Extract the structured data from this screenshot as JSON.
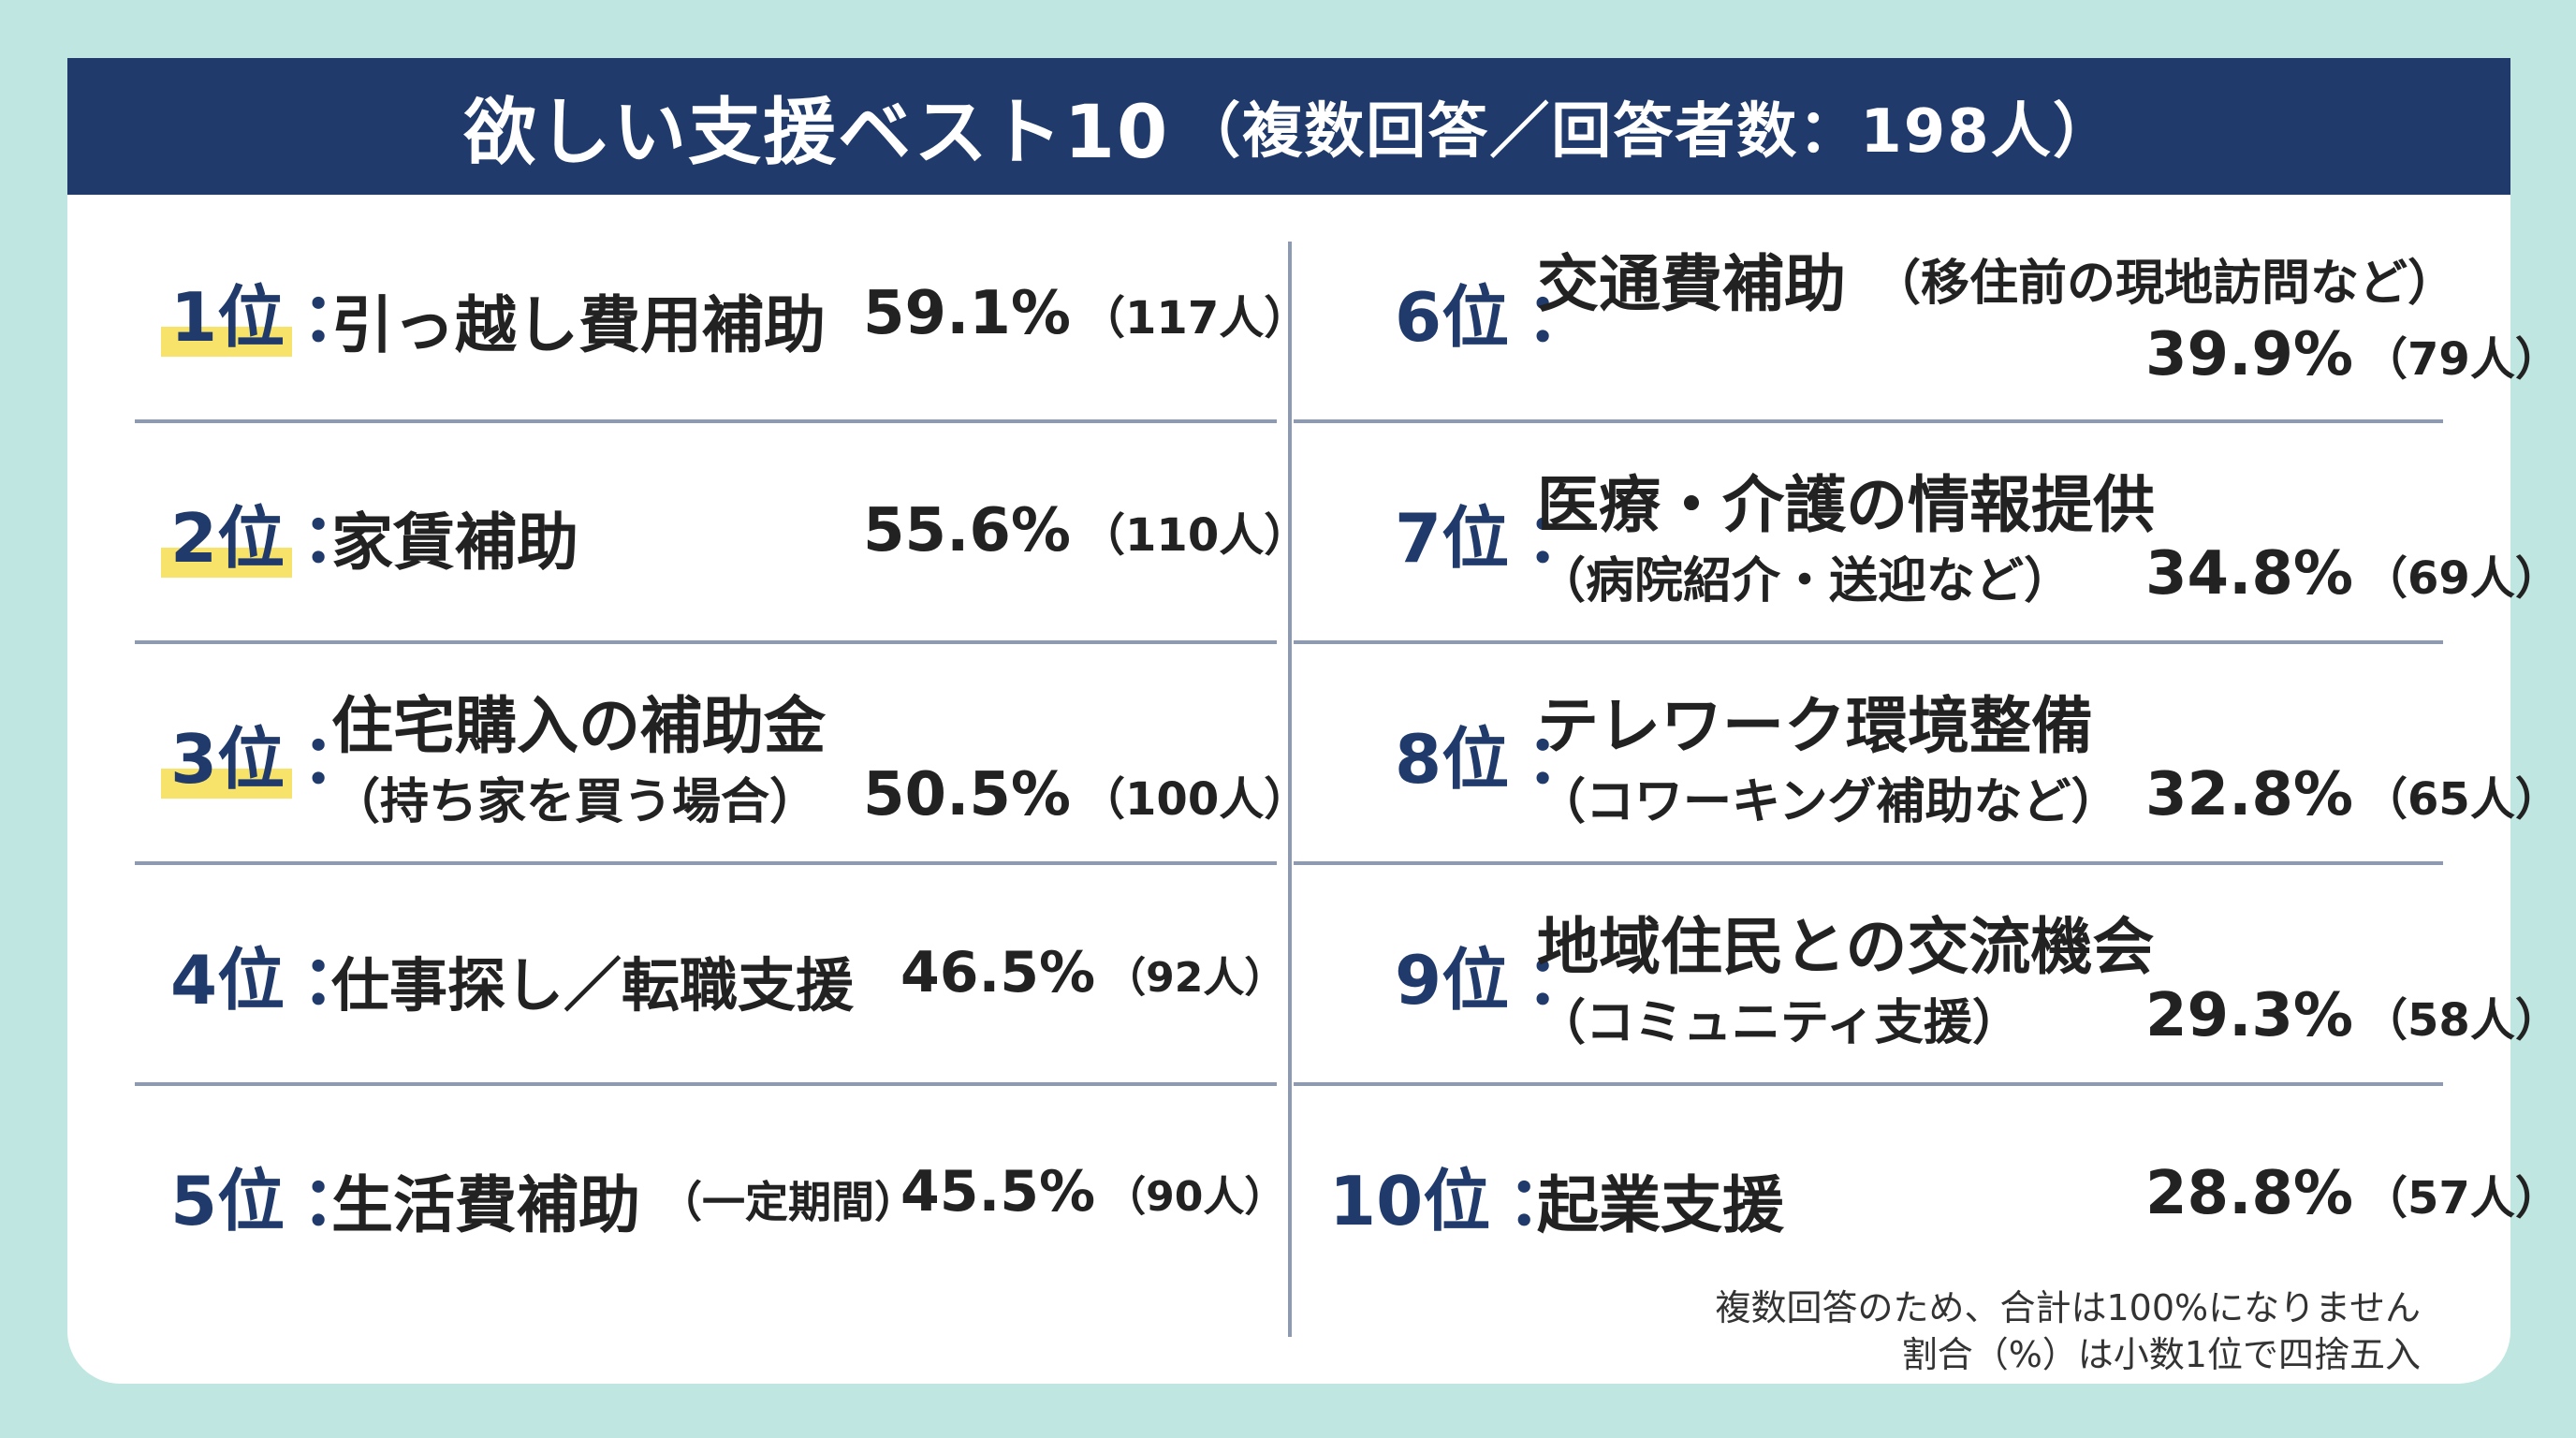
{
  "header": {
    "title": "欲しい支援ベスト10",
    "subtitle": "（複数回答／回答者数：198人）"
  },
  "items": [
    {
      "rank": "1位",
      "label": "引っ越し費用補助",
      "note": "",
      "pct": "59.1%",
      "count": "（117人）",
      "highlight": true
    },
    {
      "rank": "2位",
      "label": "家賃補助",
      "note": "",
      "pct": "55.6%",
      "count": "（110人）",
      "highlight": true
    },
    {
      "rank": "3位",
      "label": "住宅購入の補助金",
      "note": "（持ち家を買う場合）",
      "pct": "50.5%",
      "count": "（100人）",
      "highlight": true
    },
    {
      "rank": "4位",
      "label": "仕事探し／転職支援",
      "note": "",
      "pct": "46.5%",
      "count": "（92人）",
      "highlight": false
    },
    {
      "rank": "5位",
      "label": "生活費補助",
      "note": "（一定期間）",
      "pct": "45.5%",
      "count": "（90人）",
      "highlight": false
    },
    {
      "rank": "6位",
      "label": "交通費補助",
      "note": "（移住前の現地訪問など）",
      "pct": "39.9%",
      "count": "（79人）",
      "highlight": false
    },
    {
      "rank": "7位",
      "label": "医療・介護の情報提供",
      "note": "（病院紹介・送迎など）",
      "pct": "34.8%",
      "count": "（69人）",
      "highlight": false
    },
    {
      "rank": "8位",
      "label": "テレワーク環境整備",
      "note": "（コワーキング補助など）",
      "pct": "32.8%",
      "count": "（65人）",
      "highlight": false
    },
    {
      "rank": "9位",
      "label": "地域住民との交流機会",
      "note": "（コミュニティ支援）",
      "pct": "29.3%",
      "count": "（58人）",
      "highlight": false
    },
    {
      "rank": "10位",
      "label": "起業支援",
      "note": "",
      "pct": "28.8%",
      "count": "（57人）",
      "highlight": false
    }
  ],
  "footer": {
    "line1": "複数回答のため、合計は100%になりません",
    "line2": "割合（%）は小数1位で四捨五入"
  }
}
